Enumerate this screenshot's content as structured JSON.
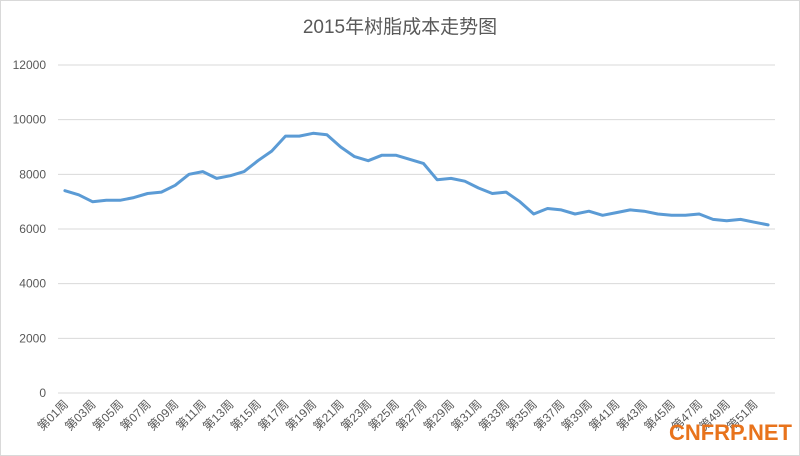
{
  "chart_data": {
    "type": "line",
    "title": "2015年树脂成本走势图",
    "categories": [
      "第01周",
      null,
      "第03周",
      null,
      "第05周",
      null,
      "第07周",
      null,
      "第09周",
      null,
      "第11周",
      null,
      "第13周",
      null,
      "第15周",
      null,
      "第17周",
      null,
      "第19周",
      null,
      "第21周",
      null,
      "第23周",
      null,
      "第25周",
      null,
      "第27周",
      null,
      "第29周",
      null,
      "第31周",
      null,
      "第33周",
      null,
      "第35周",
      null,
      "第37周",
      null,
      "第39周",
      null,
      "第41周",
      null,
      "第43周",
      null,
      "第45周",
      null,
      "第47周",
      null,
      "第49周",
      null,
      "第51周",
      null
    ],
    "series": [
      {
        "name": "树脂成本",
        "color": "#5b9bd5",
        "values": [
          7400,
          7250,
          7000,
          7050,
          7050,
          7150,
          7300,
          7350,
          7600,
          8000,
          8100,
          7850,
          7950,
          8100,
          8500,
          8850,
          9400,
          9400,
          9500,
          9450,
          9000,
          8650,
          8500,
          8700,
          8700,
          8550,
          8400,
          7800,
          7850,
          7750,
          7500,
          7300,
          7350,
          7000,
          6550,
          6750,
          6700,
          6550,
          6650,
          6500,
          6600,
          6700,
          6650,
          6550,
          6500,
          6500,
          6550,
          6350,
          6300,
          6350,
          6250,
          6150
        ]
      }
    ],
    "ylim": [
      0,
      12000
    ],
    "yticks": [
      0,
      2000,
      4000,
      6000,
      8000,
      10000,
      12000
    ],
    "grid": true
  },
  "watermark": "CNFRP.NET"
}
